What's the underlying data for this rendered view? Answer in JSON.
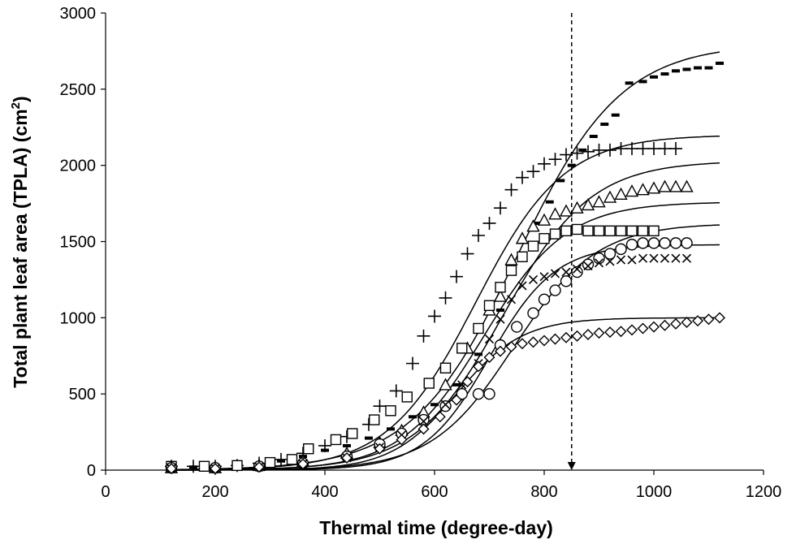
{
  "chart_data": {
    "type": "scatter",
    "xlabel": "Thermal time (degree-day)",
    "ylabel": "Total plant leaf area (TPLA) (cm",
    "ylabel_sup": "2",
    "ylabel_end": ")",
    "xlim": [
      0,
      1200
    ],
    "ylim": [
      0,
      3000
    ],
    "xticks": [
      "0",
      "200",
      "400",
      "600",
      "800",
      "1000",
      "1200"
    ],
    "yticks": [
      "0",
      "500",
      "1000",
      "1500",
      "2000",
      "2500",
      "3000"
    ],
    "grid": false,
    "legend": "none",
    "vertical_marker": {
      "x": 850,
      "from_y": 3000,
      "to_y": 0,
      "style": "dashed-arrow"
    },
    "series": [
      {
        "marker": "dash",
        "points": [
          [
            120,
            20
          ],
          [
            160,
            20
          ],
          [
            200,
            20
          ],
          [
            240,
            25
          ],
          [
            280,
            40
          ],
          [
            320,
            60
          ],
          [
            360,
            90
          ],
          [
            400,
            130
          ],
          [
            440,
            160
          ],
          [
            480,
            210
          ],
          [
            520,
            270
          ],
          [
            560,
            350
          ],
          [
            600,
            430
          ],
          [
            640,
            560
          ],
          [
            680,
            760
          ],
          [
            720,
            1050
          ],
          [
            760,
            1380
          ],
          [
            790,
            1620
          ],
          [
            810,
            1760
          ],
          [
            830,
            1900
          ],
          [
            850,
            2000
          ],
          [
            870,
            2100
          ],
          [
            890,
            2190
          ],
          [
            910,
            2270
          ],
          [
            930,
            2330
          ],
          [
            955,
            2540
          ],
          [
            980,
            2550
          ],
          [
            1000,
            2580
          ],
          [
            1020,
            2600
          ],
          [
            1040,
            2620
          ],
          [
            1060,
            2630
          ],
          [
            1080,
            2640
          ],
          [
            1100,
            2640
          ],
          [
            1120,
            2670
          ]
        ],
        "fit": {
          "A": 2800,
          "x0": 750,
          "s": 95
        }
      },
      {
        "marker": "plus",
        "points": [
          [
            120,
            25
          ],
          [
            160,
            25
          ],
          [
            200,
            25
          ],
          [
            240,
            30
          ],
          [
            280,
            45
          ],
          [
            320,
            70
          ],
          [
            360,
            110
          ],
          [
            400,
            160
          ],
          [
            440,
            220
          ],
          [
            480,
            300
          ],
          [
            500,
            420
          ],
          [
            530,
            520
          ],
          [
            560,
            700
          ],
          [
            580,
            880
          ],
          [
            600,
            1010
          ],
          [
            620,
            1130
          ],
          [
            640,
            1270
          ],
          [
            660,
            1420
          ],
          [
            680,
            1540
          ],
          [
            700,
            1620
          ],
          [
            720,
            1720
          ],
          [
            740,
            1840
          ],
          [
            760,
            1920
          ],
          [
            780,
            1960
          ],
          [
            800,
            2010
          ],
          [
            820,
            2040
          ],
          [
            840,
            2070
          ],
          [
            860,
            2080
          ],
          [
            880,
            2090
          ],
          [
            900,
            2100
          ],
          [
            920,
            2100
          ],
          [
            940,
            2110
          ],
          [
            960,
            2110
          ],
          [
            980,
            2110
          ],
          [
            1000,
            2110
          ],
          [
            1020,
            2110
          ],
          [
            1040,
            2110
          ]
        ],
        "fit": {
          "A": 2200,
          "x0": 675,
          "s": 80
        }
      },
      {
        "marker": "triangle",
        "points": [
          [
            120,
            15
          ],
          [
            200,
            15
          ],
          [
            280,
            30
          ],
          [
            360,
            60
          ],
          [
            440,
            110
          ],
          [
            500,
            180
          ],
          [
            540,
            260
          ],
          [
            580,
            380
          ],
          [
            620,
            560
          ],
          [
            660,
            800
          ],
          [
            700,
            1050
          ],
          [
            720,
            1140
          ],
          [
            740,
            1380
          ],
          [
            760,
            1520
          ],
          [
            780,
            1600
          ],
          [
            800,
            1640
          ],
          [
            820,
            1680
          ],
          [
            840,
            1700
          ],
          [
            860,
            1720
          ],
          [
            880,
            1740
          ],
          [
            900,
            1760
          ],
          [
            920,
            1790
          ],
          [
            940,
            1810
          ],
          [
            960,
            1830
          ],
          [
            980,
            1840
          ],
          [
            1000,
            1850
          ],
          [
            1020,
            1860
          ],
          [
            1040,
            1860
          ],
          [
            1060,
            1860
          ]
        ],
        "fit": {
          "A": 2030,
          "x0": 725,
          "s": 80
        }
      },
      {
        "marker": "square",
        "points": [
          [
            120,
            25
          ],
          [
            180,
            25
          ],
          [
            240,
            30
          ],
          [
            300,
            50
          ],
          [
            340,
            70
          ],
          [
            370,
            140
          ],
          [
            420,
            200
          ],
          [
            450,
            240
          ],
          [
            490,
            330
          ],
          [
            520,
            390
          ],
          [
            550,
            480
          ],
          [
            590,
            570
          ],
          [
            620,
            670
          ],
          [
            650,
            800
          ],
          [
            680,
            930
          ],
          [
            700,
            1080
          ],
          [
            720,
            1200
          ],
          [
            740,
            1310
          ],
          [
            760,
            1400
          ],
          [
            780,
            1470
          ],
          [
            800,
            1520
          ],
          [
            820,
            1550
          ],
          [
            840,
            1570
          ],
          [
            860,
            1580
          ],
          [
            880,
            1570
          ],
          [
            900,
            1570
          ],
          [
            920,
            1570
          ],
          [
            940,
            1570
          ],
          [
            960,
            1570
          ],
          [
            980,
            1570
          ],
          [
            1000,
            1570
          ]
        ],
        "fit": {
          "A": 1760,
          "x0": 690,
          "s": 75
        }
      },
      {
        "marker": "circle",
        "points": [
          [
            120,
            15
          ],
          [
            200,
            15
          ],
          [
            280,
            25
          ],
          [
            360,
            45
          ],
          [
            440,
            90
          ],
          [
            500,
            170
          ],
          [
            540,
            240
          ],
          [
            580,
            330
          ],
          [
            620,
            420
          ],
          [
            650,
            500
          ],
          [
            680,
            500
          ],
          [
            700,
            500
          ],
          [
            720,
            820
          ],
          [
            750,
            940
          ],
          [
            780,
            1030
          ],
          [
            800,
            1120
          ],
          [
            820,
            1180
          ],
          [
            840,
            1240
          ],
          [
            860,
            1300
          ],
          [
            880,
            1350
          ],
          [
            900,
            1390
          ],
          [
            920,
            1420
          ],
          [
            940,
            1450
          ],
          [
            960,
            1480
          ],
          [
            980,
            1490
          ],
          [
            1000,
            1490
          ],
          [
            1020,
            1490
          ],
          [
            1040,
            1490
          ],
          [
            1060,
            1490
          ]
        ],
        "fit": {
          "A": 1620,
          "x0": 745,
          "s": 75
        }
      },
      {
        "marker": "x",
        "points": [
          [
            120,
            10
          ],
          [
            200,
            10
          ],
          [
            280,
            20
          ],
          [
            360,
            40
          ],
          [
            440,
            80
          ],
          [
            500,
            150
          ],
          [
            540,
            230
          ],
          [
            580,
            320
          ],
          [
            620,
            430
          ],
          [
            650,
            560
          ],
          [
            680,
            700
          ],
          [
            700,
            860
          ],
          [
            720,
            990
          ],
          [
            740,
            1120
          ],
          [
            760,
            1210
          ],
          [
            780,
            1250
          ],
          [
            800,
            1270
          ],
          [
            820,
            1290
          ],
          [
            840,
            1300
          ],
          [
            860,
            1320
          ],
          [
            880,
            1340
          ],
          [
            900,
            1360
          ],
          [
            920,
            1370
          ],
          [
            940,
            1380
          ],
          [
            960,
            1380
          ],
          [
            980,
            1390
          ],
          [
            1000,
            1390
          ],
          [
            1020,
            1390
          ],
          [
            1040,
            1390
          ],
          [
            1060,
            1390
          ]
        ],
        "fit": {
          "A": 1480,
          "x0": 700,
          "s": 60
        }
      },
      {
        "marker": "diamond",
        "points": [
          [
            120,
            10
          ],
          [
            200,
            10
          ],
          [
            280,
            20
          ],
          [
            360,
            40
          ],
          [
            440,
            80
          ],
          [
            500,
            140
          ],
          [
            540,
            200
          ],
          [
            580,
            270
          ],
          [
            610,
            350
          ],
          [
            640,
            460
          ],
          [
            660,
            580
          ],
          [
            680,
            680
          ],
          [
            700,
            740
          ],
          [
            720,
            780
          ],
          [
            740,
            810
          ],
          [
            760,
            830
          ],
          [
            780,
            840
          ],
          [
            800,
            850
          ],
          [
            820,
            860
          ],
          [
            840,
            870
          ],
          [
            860,
            880
          ],
          [
            880,
            890
          ],
          [
            900,
            900
          ],
          [
            920,
            905
          ],
          [
            940,
            910
          ],
          [
            960,
            920
          ],
          [
            980,
            930
          ],
          [
            1000,
            940
          ],
          [
            1020,
            950
          ],
          [
            1040,
            960
          ],
          [
            1060,
            970
          ],
          [
            1080,
            980
          ],
          [
            1100,
            990
          ],
          [
            1120,
            1000
          ]
        ],
        "fit": {
          "A": 1000,
          "x0": 640,
          "s": 60
        }
      }
    ]
  }
}
